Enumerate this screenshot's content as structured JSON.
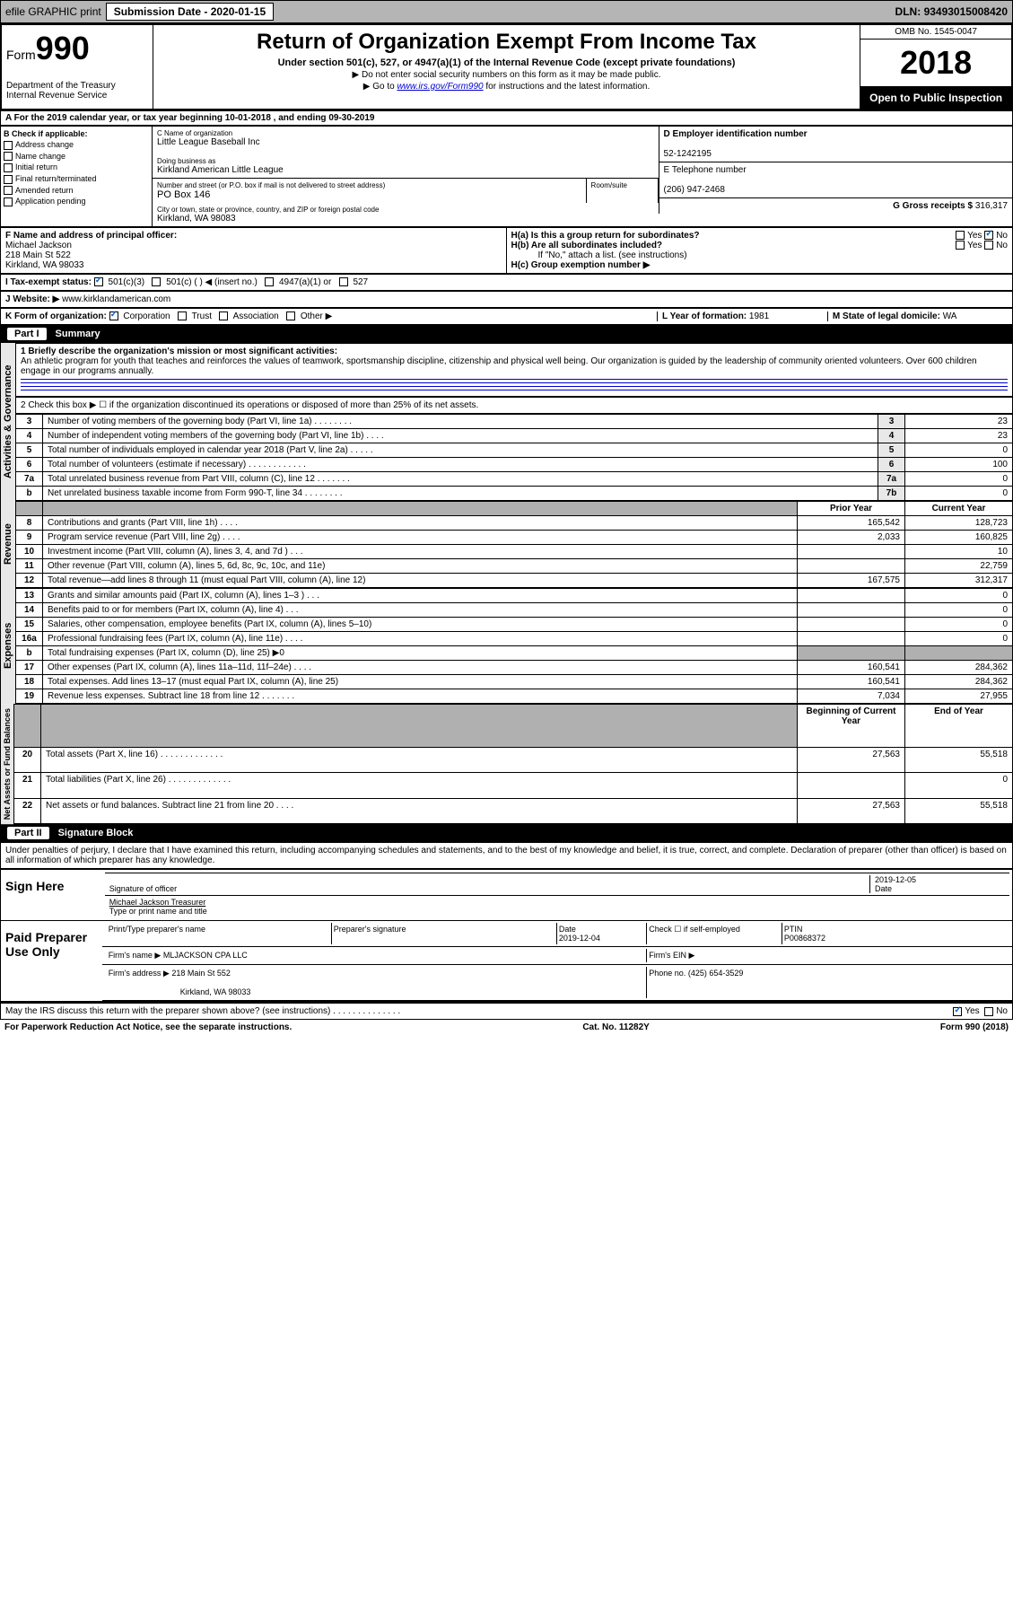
{
  "topbar": {
    "efile": "efile GRAPHIC print",
    "submission_label": "Submission Date",
    "submission_date": "2020-01-15",
    "dln_label": "DLN:",
    "dln": "93493015008420"
  },
  "header": {
    "form": "Form",
    "form_num": "990",
    "dept": "Department of the Treasury\nInternal Revenue Service",
    "title": "Return of Organization Exempt From Income Tax",
    "subtitle": "Under section 501(c), 527, or 4947(a)(1) of the Internal Revenue Code (except private foundations)",
    "note1": "▶ Do not enter social security numbers on this form as it may be made public.",
    "note2": "▶ Go to www.irs.gov/Form990 for instructions and the latest information.",
    "omb": "OMB No. 1545-0047",
    "year": "2018",
    "inspection": "Open to Public Inspection"
  },
  "sectionA": "A For the 2019 calendar year, or tax year beginning 10-01-2018   , and ending 09-30-2019",
  "sectionB": {
    "label": "B Check if applicable:",
    "items": [
      "Address change",
      "Name change",
      "Initial return",
      "Final return/terminated",
      "Amended return",
      "Application pending"
    ]
  },
  "sectionC": {
    "name_label": "C Name of organization",
    "name": "Little League Baseball Inc",
    "dba_label": "Doing business as",
    "dba": "Kirkland American Little League",
    "addr_label": "Number and street (or P.O. box if mail is not delivered to street address)",
    "addr": "PO Box 146",
    "room_label": "Room/suite",
    "city_label": "City or town, state or province, country, and ZIP or foreign postal code",
    "city": "Kirkland, WA  98083"
  },
  "sectionD": {
    "label": "D Employer identification number",
    "value": "52-1242195"
  },
  "sectionE": {
    "label": "E Telephone number",
    "value": "(206) 947-2468"
  },
  "sectionG": {
    "label": "G Gross receipts $",
    "value": "316,317"
  },
  "sectionF": {
    "label": "F  Name and address of principal officer:",
    "name": "Michael Jackson",
    "addr": "218 Main St 522",
    "city": "Kirkland, WA  98033"
  },
  "sectionH": {
    "a": "H(a)  Is this a group return for subordinates?",
    "b": "H(b)  Are all subordinates included?",
    "b_note": "If \"No,\" attach a list. (see instructions)",
    "c": "H(c)  Group exemption number ▶"
  },
  "sectionI": {
    "label": "I   Tax-exempt status:",
    "opts": [
      "501(c)(3)",
      "501(c) (  ) ◀ (insert no.)",
      "4947(a)(1) or",
      "527"
    ]
  },
  "sectionJ": {
    "label": "J   Website: ▶",
    "value": "www.kirklandamerican.com"
  },
  "sectionK": {
    "label": "K Form of organization:",
    "opts": [
      "Corporation",
      "Trust",
      "Association",
      "Other ▶"
    ]
  },
  "sectionL": {
    "label": "L Year of formation:",
    "value": "1981"
  },
  "sectionM": {
    "label": "M State of legal domicile:",
    "value": "WA"
  },
  "part1": {
    "title": "Summary",
    "q1_label": "1   Briefly describe the organization's mission or most significant activities:",
    "q1_text": "An athletic program for youth that teaches and reinforces the values of teamwork, sportsmanship discipline, citizenship and physical well being. Our organization is guided by the leadership of community oriented volunteers. Over 600 children engage in our programs annually.",
    "q2": "2   Check this box ▶ ☐  if the organization discontinued its operations or disposed of more than 25% of its net assets.",
    "rows_top": [
      {
        "n": "3",
        "label": "Number of voting members of the governing body (Part VI, line 1a)  .    .    .    .    .    .    .    .",
        "box": "3",
        "val": "23"
      },
      {
        "n": "4",
        "label": "Number of independent voting members of the governing body (Part VI, line 1b)   .    .    .    .",
        "box": "4",
        "val": "23"
      },
      {
        "n": "5",
        "label": "Total number of individuals employed in calendar year 2018 (Part V, line 2a)   .    .    .    .    .",
        "box": "5",
        "val": "0"
      },
      {
        "n": "6",
        "label": "Total number of volunteers (estimate if necessary)   .    .    .    .    .    .    .    .    .    .    .    .",
        "box": "6",
        "val": "100"
      },
      {
        "n": "7a",
        "label": "Total unrelated business revenue from Part VIII, column (C), line 12   .    .    .    .    .    .    .",
        "box": "7a",
        "val": "0"
      },
      {
        "n": "b",
        "label": "Net unrelated business taxable income from Form 990-T, line 34   .    .    .    .    .    .    .    .",
        "box": "7b",
        "val": "0"
      }
    ],
    "col_headers": {
      "prior": "Prior Year",
      "current": "Current Year"
    },
    "revenue": [
      {
        "n": "8",
        "label": "Contributions and grants (Part VIII, line 1h)   .    .    .    .",
        "prior": "165,542",
        "current": "128,723"
      },
      {
        "n": "9",
        "label": "Program service revenue (Part VIII, line 2g)   .    .    .    .",
        "prior": "2,033",
        "current": "160,825"
      },
      {
        "n": "10",
        "label": "Investment income (Part VIII, column (A), lines 3, 4, and 7d )   .    .    .",
        "prior": "",
        "current": "10"
      },
      {
        "n": "11",
        "label": "Other revenue (Part VIII, column (A), lines 5, 6d, 8c, 9c, 10c, and 11e)",
        "prior": "",
        "current": "22,759"
      },
      {
        "n": "12",
        "label": "Total revenue—add lines 8 through 11 (must equal Part VIII, column (A), line 12)",
        "prior": "167,575",
        "current": "312,317"
      }
    ],
    "expenses": [
      {
        "n": "13",
        "label": "Grants and similar amounts paid (Part IX, column (A), lines 1–3 )   .    .    .",
        "prior": "",
        "current": "0"
      },
      {
        "n": "14",
        "label": "Benefits paid to or for members (Part IX, column (A), line 4)   .    .    .",
        "prior": "",
        "current": "0"
      },
      {
        "n": "15",
        "label": "Salaries, other compensation, employee benefits (Part IX, column (A), lines 5–10)",
        "prior": "",
        "current": "0"
      },
      {
        "n": "16a",
        "label": "Professional fundraising fees (Part IX, column (A), line 11e)   .    .    .    .",
        "prior": "",
        "current": "0"
      },
      {
        "n": "b",
        "label": "Total fundraising expenses (Part IX, column (D), line 25) ▶0",
        "prior": "gray",
        "current": "gray"
      },
      {
        "n": "17",
        "label": "Other expenses (Part IX, column (A), lines 11a–11d, 11f–24e)   .    .    .    .",
        "prior": "160,541",
        "current": "284,362"
      },
      {
        "n": "18",
        "label": "Total expenses. Add lines 13–17 (must equal Part IX, column (A), line 25)",
        "prior": "160,541",
        "current": "284,362"
      },
      {
        "n": "19",
        "label": "Revenue less expenses. Subtract line 18 from line 12 .    .    .    .    .    .    .",
        "prior": "7,034",
        "current": "27,955"
      }
    ],
    "netassets_headers": {
      "begin": "Beginning of Current Year",
      "end": "End of Year"
    },
    "netassets": [
      {
        "n": "20",
        "label": "Total assets (Part X, line 16)   .    .    .    .    .    .    .    .    .    .    .    .    .",
        "prior": "27,563",
        "current": "55,518"
      },
      {
        "n": "21",
        "label": "Total liabilities (Part X, line 26)  .    .    .    .    .    .    .    .    .    .    .    .    .",
        "prior": "",
        "current": "0"
      },
      {
        "n": "22",
        "label": "Net assets or fund balances. Subtract line 21 from line 20   .    .    .    .",
        "prior": "27,563",
        "current": "55,518"
      }
    ],
    "vert_labels": {
      "gov": "Activities & Governance",
      "rev": "Revenue",
      "exp": "Expenses",
      "net": "Net Assets or Fund Balances"
    }
  },
  "part2": {
    "title": "Signature Block",
    "declaration": "Under penalties of perjury, I declare that I have examined this return, including accompanying schedules and statements, and to the best of my knowledge and belief, it is true, correct, and complete. Declaration of preparer (other than officer) is based on all information of which preparer has any knowledge.",
    "sign_here": "Sign Here",
    "sig_officer": "Signature of officer",
    "sig_date": "2019-12-05",
    "date_label": "Date",
    "officer_name": "Michael Jackson  Treasurer",
    "type_label": "Type or print name and title",
    "paid_label": "Paid Preparer Use Only",
    "prep_name_label": "Print/Type preparer's name",
    "prep_sig_label": "Preparer's signature",
    "prep_date": "2019-12-04",
    "check_label": "Check ☐ if self-employed",
    "ptin_label": "PTIN",
    "ptin": "P00868372",
    "firm_name_label": "Firm's name     ▶",
    "firm_name": "MLJACKSON CPA LLC",
    "firm_ein_label": "Firm's EIN ▶",
    "firm_addr_label": "Firm's address ▶",
    "firm_addr": "218 Main St 552",
    "firm_city": "Kirkland, WA  98033",
    "firm_phone_label": "Phone no.",
    "firm_phone": "(425) 654-3529",
    "discuss": "May the IRS discuss this return with the preparer shown above? (see instructions)   .    .    .    .    .    .    .    .    .    .    .    .    .    ."
  },
  "footer": {
    "left": "For Paperwork Reduction Act Notice, see the separate instructions.",
    "center": "Cat. No. 11282Y",
    "right": "Form 990 (2018)"
  }
}
